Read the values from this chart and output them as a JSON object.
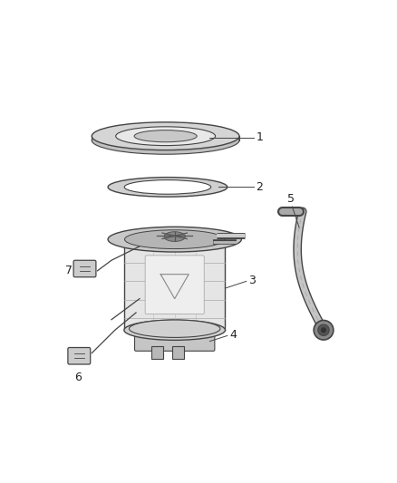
{
  "background_color": "#ffffff",
  "fig_width": 4.38,
  "fig_height": 5.33,
  "dpi": 100,
  "line_color": "#444444",
  "light_gray": "#d8d8d8",
  "mid_gray": "#aaaaaa",
  "dark_gray": "#666666"
}
